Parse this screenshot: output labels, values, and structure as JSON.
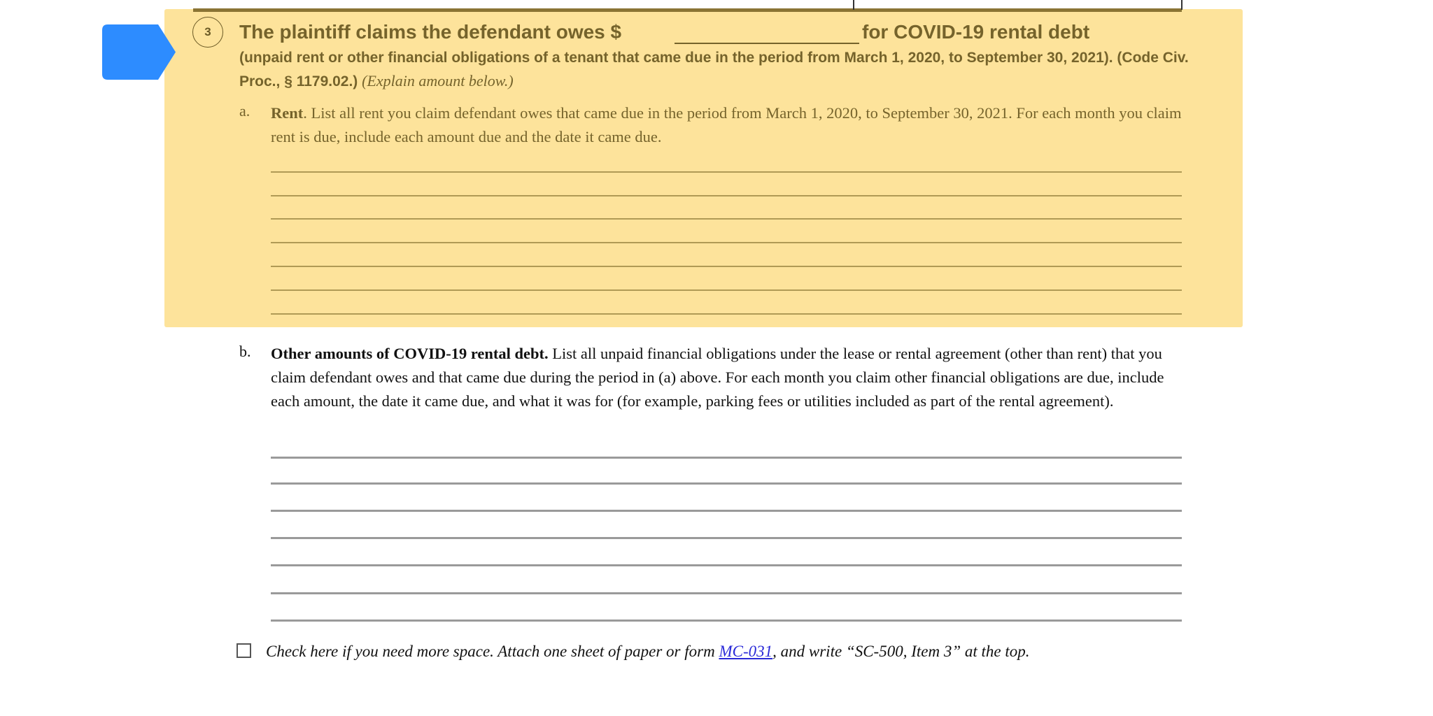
{
  "colors": {
    "highlight": "#fde39b",
    "highlight_text": "#75632b",
    "marker": "#2d8cff",
    "link": "#2a2ad8"
  },
  "marker_icon": "blue-pointer-tag",
  "item3": {
    "number": "3",
    "title_before": "The plaintiff claims the defendant owes $",
    "amount_value": "",
    "title_after": "for COVID-19 rental debt",
    "subtitle": "(unpaid rent or other financial obligations of a tenant that came due in the period from March 1, 2020, to September 30, 2021). (Code Civ. Proc., § 1179.02.)",
    "subtitle_italic": "(Explain amount below.)",
    "a": {
      "label": "a.",
      "heading": "Rent",
      "text": ".  List all rent you claim defendant owes that came due in the period from March 1, 2020, to September 30, 2021. For each month you claim rent is due, include each amount due and the date it came due."
    },
    "b": {
      "label": "b.",
      "heading": "Other amounts of COVID-19 rental debt.",
      "text": " List all unpaid financial obligations under the lease or rental agreement (other than rent) that you claim defendant owes and that came due during the period in (a) above. For each month you claim other financial obligations are due, include each amount, the date it came due, and what it was for (for example, parking fees or utilities included as part of the rental agreement)."
    },
    "more_space": {
      "checked": false,
      "text_before": "Check here if you need more space. Attach one sheet of paper or form ",
      "link": "MC-031",
      "text_after": ", and write “SC-500, Item 3” at the top."
    }
  }
}
